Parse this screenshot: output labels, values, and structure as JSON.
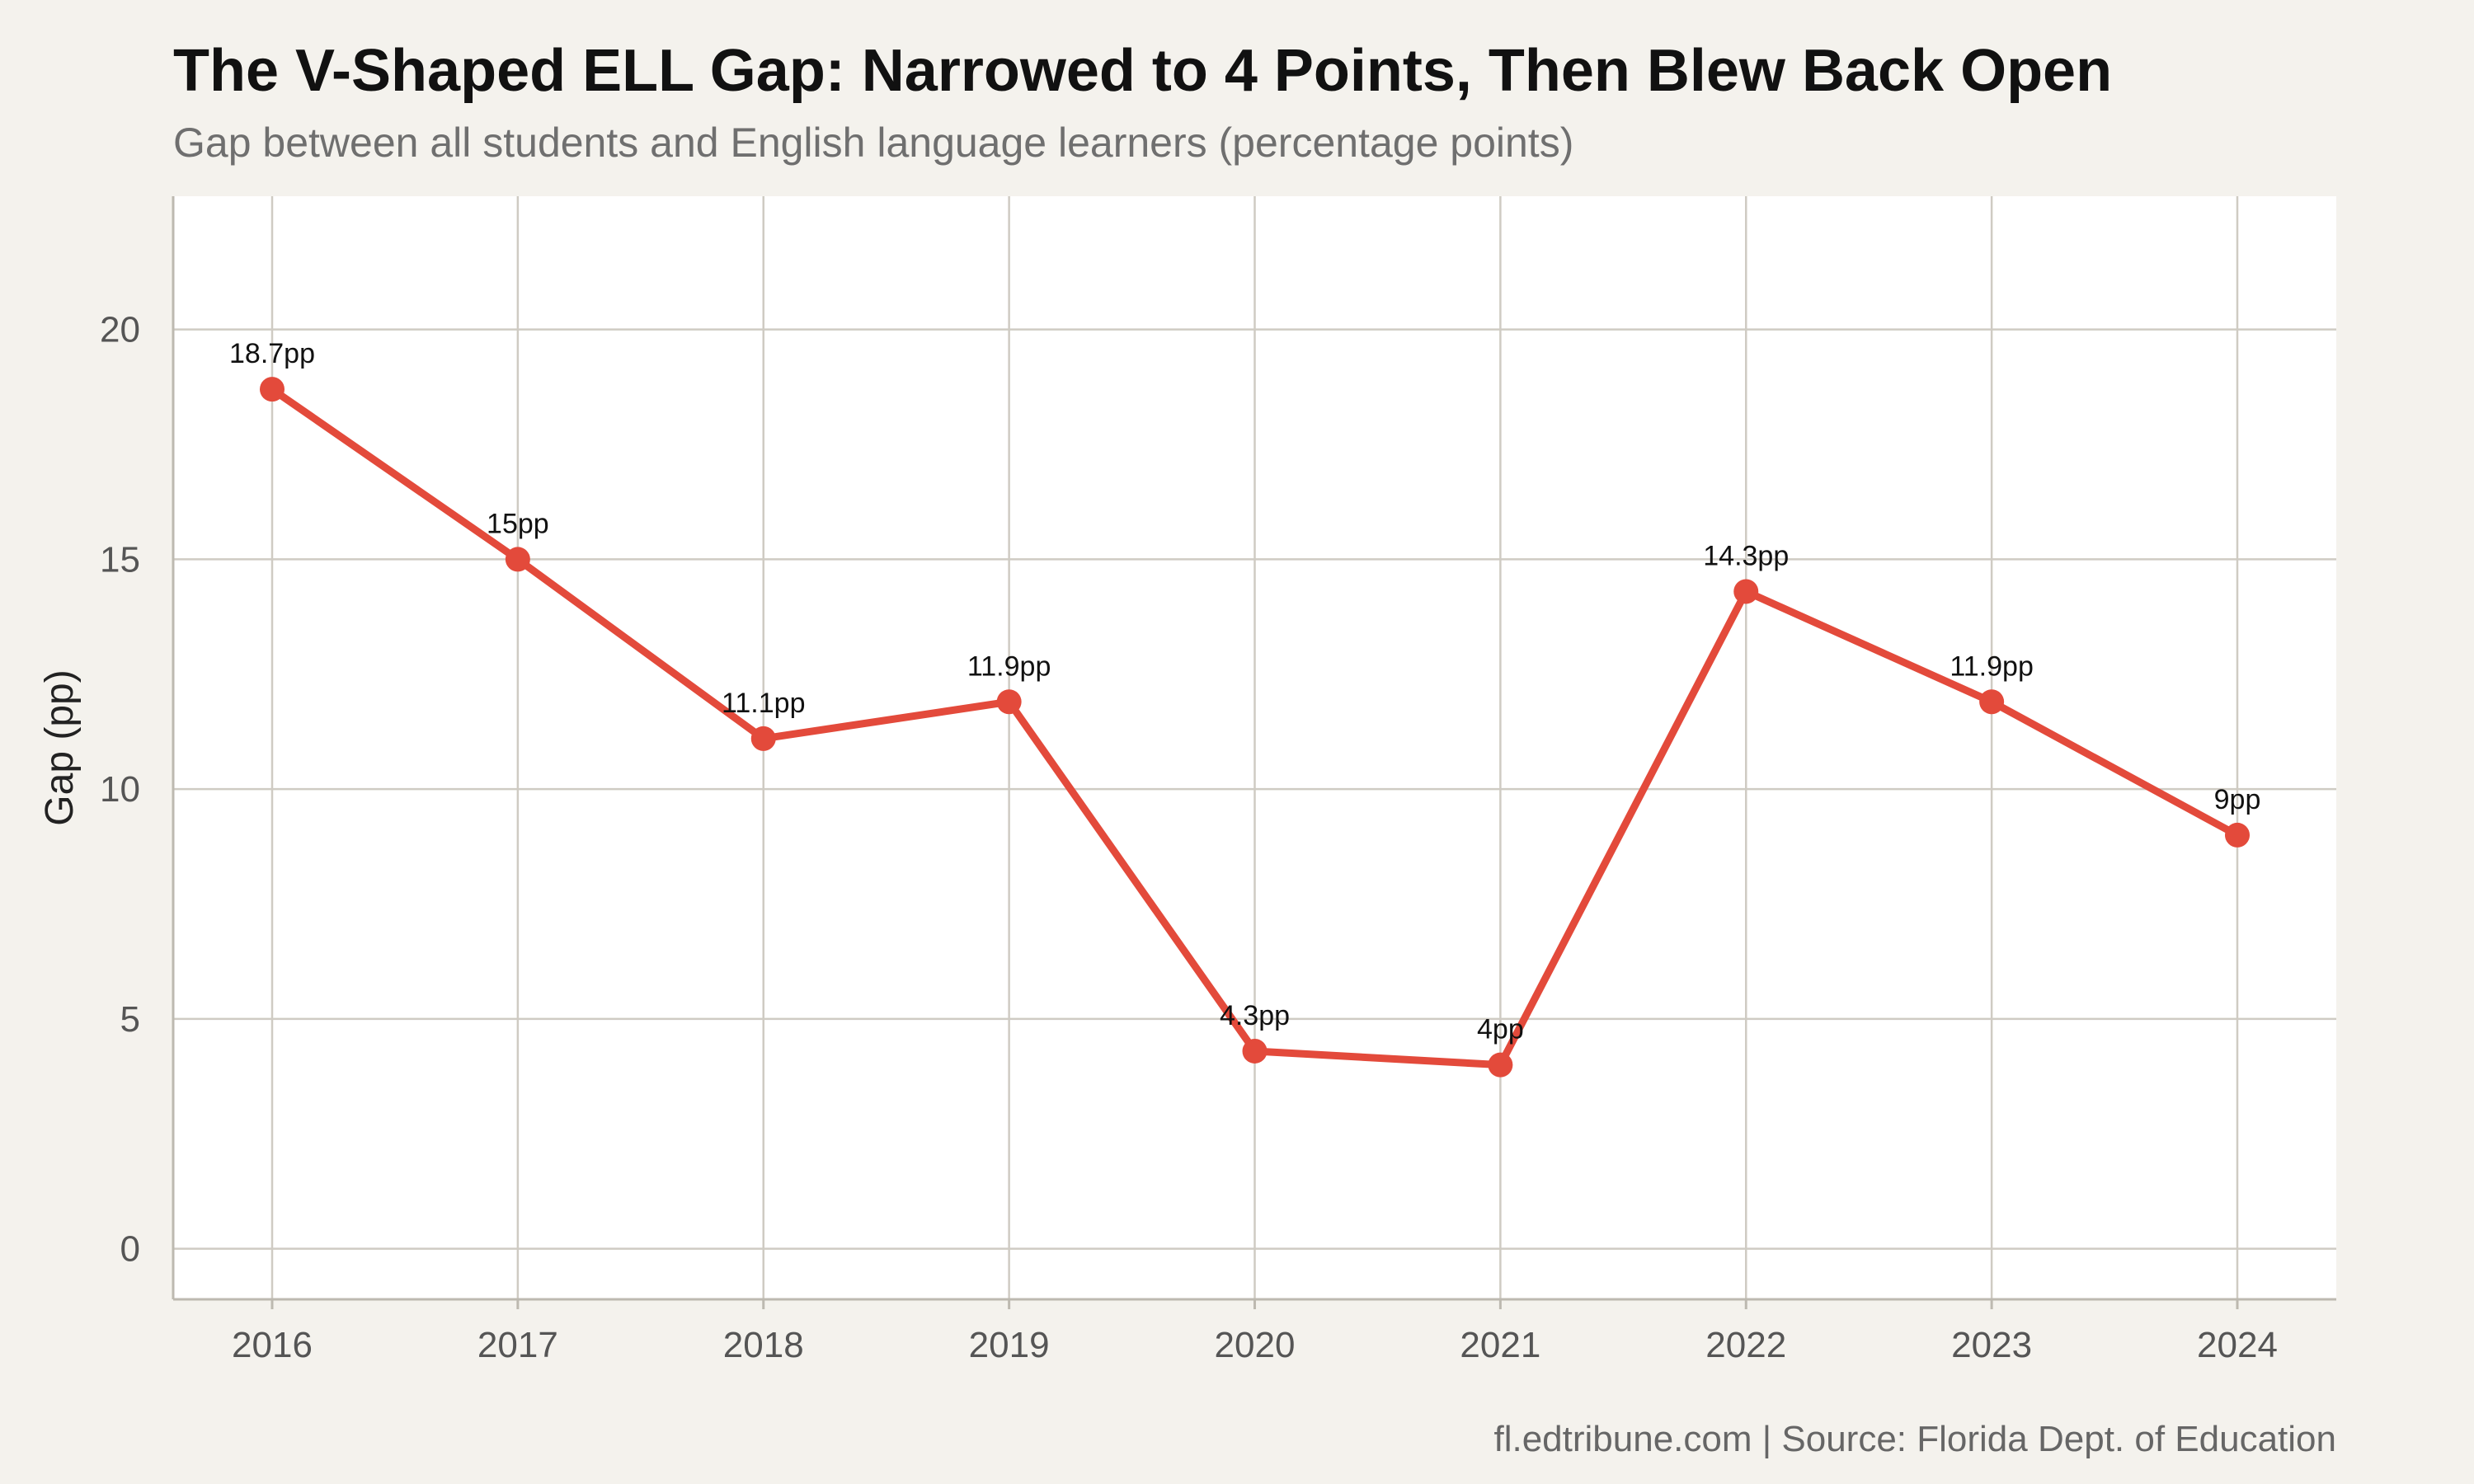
{
  "title": "The V-Shaped ELL Gap: Narrowed to 4 Points, Then Blew Back Open",
  "subtitle": "Gap between all students and English language learners (percentage points)",
  "caption": "fl.edtribune.com | Source: Florida Dept. of Education",
  "colors": {
    "background": "#f4f2ed",
    "panel": "#ffffff",
    "series": "#e34a3b",
    "grid": "#cfcbc3"
  },
  "chart_data": {
    "type": "line",
    "title": "The V-Shaped ELL Gap: Narrowed to 4 Points, Then Blew Back Open",
    "subtitle": "Gap between all students and English language learners (percentage points)",
    "xlabel": "",
    "ylabel": "Gap (pp)",
    "x": [
      "2016",
      "2017",
      "2018",
      "2019",
      "2020",
      "2021",
      "2022",
      "2023",
      "2024"
    ],
    "series": [
      {
        "values": [
          18.7,
          15,
          11.1,
          11.9,
          4.3,
          4,
          14.3,
          11.9,
          9
        ],
        "labels": [
          "18.7pp",
          "15pp",
          "11.1pp",
          "11.9pp",
          "4.3pp",
          "4pp",
          "14.3pp",
          "11.9pp",
          "9pp"
        ]
      }
    ],
    "ylim": [
      -1.1,
      22.9
    ],
    "yticks": [
      0,
      5,
      10,
      15,
      20
    ],
    "grid": true,
    "legend": "none"
  }
}
